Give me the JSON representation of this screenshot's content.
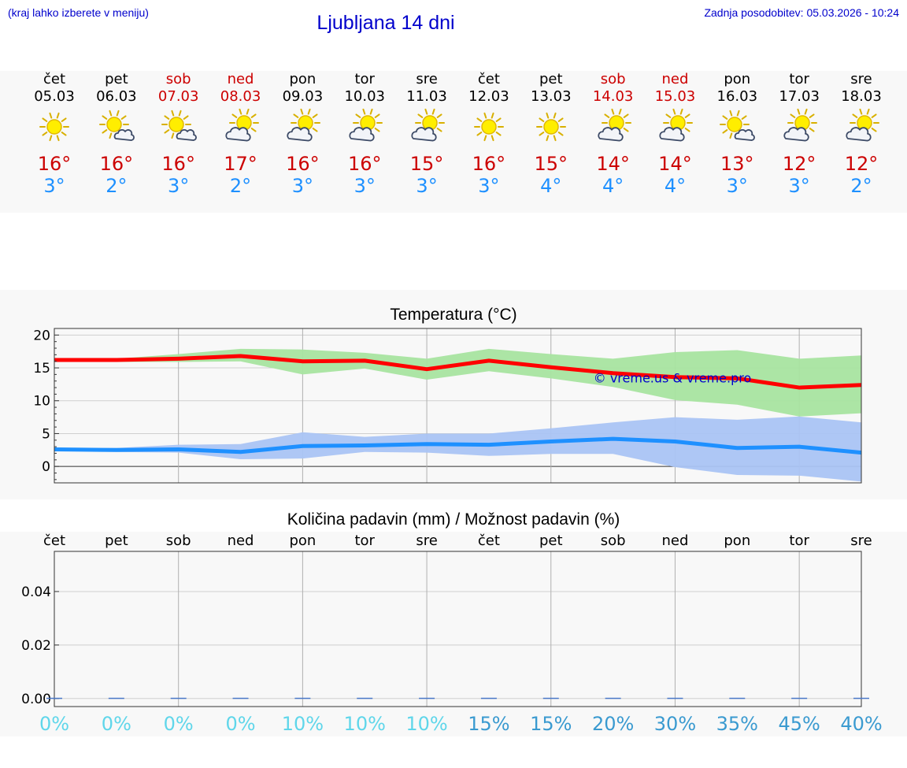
{
  "header": {
    "hint": "(kraj lahko izberete v meniju)",
    "title": "Ljubljana 14 dni",
    "updated": "Zadnja posodobitev: 05.03.2026 - 10:24"
  },
  "days": [
    {
      "name": "čet",
      "date": "05.03",
      "weekend": false,
      "icon": "sun-icon",
      "max": "16°",
      "min": "3°",
      "precip_chance": "0%"
    },
    {
      "name": "pet",
      "date": "06.03",
      "weekend": false,
      "icon": "sun-cloud-icon",
      "max": "16°",
      "min": "2°",
      "precip_chance": "0%"
    },
    {
      "name": "sob",
      "date": "07.03",
      "weekend": true,
      "icon": "sun-cloud-icon",
      "max": "16°",
      "min": "3°",
      "precip_chance": "0%"
    },
    {
      "name": "ned",
      "date": "08.03",
      "weekend": true,
      "icon": "cloud-sun-icon",
      "max": "17°",
      "min": "2°",
      "precip_chance": "0%"
    },
    {
      "name": "pon",
      "date": "09.03",
      "weekend": false,
      "icon": "cloud-sun-icon",
      "max": "16°",
      "min": "3°",
      "precip_chance": "10%"
    },
    {
      "name": "tor",
      "date": "10.03",
      "weekend": false,
      "icon": "cloud-sun-icon",
      "max": "16°",
      "min": "3°",
      "precip_chance": "10%"
    },
    {
      "name": "sre",
      "date": "11.03",
      "weekend": false,
      "icon": "cloud-sun-icon",
      "max": "15°",
      "min": "3°",
      "precip_chance": "10%"
    },
    {
      "name": "čet",
      "date": "12.03",
      "weekend": false,
      "icon": "sun-icon",
      "max": "16°",
      "min": "3°",
      "precip_chance": "15%"
    },
    {
      "name": "pet",
      "date": "13.03",
      "weekend": false,
      "icon": "sun-icon",
      "max": "15°",
      "min": "4°",
      "precip_chance": "15%"
    },
    {
      "name": "sob",
      "date": "14.03",
      "weekend": true,
      "icon": "cloud-sun-icon",
      "max": "14°",
      "min": "4°",
      "precip_chance": "20%"
    },
    {
      "name": "ned",
      "date": "15.03",
      "weekend": true,
      "icon": "cloud-sun-icon",
      "max": "14°",
      "min": "4°",
      "precip_chance": "30%"
    },
    {
      "name": "pon",
      "date": "16.03",
      "weekend": false,
      "icon": "sun-cloud-icon",
      "max": "13°",
      "min": "3°",
      "precip_chance": "35%"
    },
    {
      "name": "tor",
      "date": "17.03",
      "weekend": false,
      "icon": "cloud-sun-icon",
      "max": "12°",
      "min": "3°",
      "precip_chance": "45%"
    },
    {
      "name": "sre",
      "date": "18.03",
      "weekend": false,
      "icon": "cloud-sun-icon",
      "max": "12°",
      "min": "2°",
      "precip_chance": "40%"
    }
  ],
  "colors": {
    "max_temp": "#cc0000",
    "min_temp": "#1e90ff",
    "max_line": "#ff0000",
    "max_band": "#a8e4a0",
    "min_band": "#aac4f4",
    "weekend": "#cc0000",
    "header_text": "#0000cc"
  },
  "chart_data": [
    {
      "type": "line",
      "title": "Temperatura (°C)",
      "watermark": "© vreme.us & vreme.pro",
      "ylim": [
        -2.5,
        21
      ],
      "yticks": [
        0,
        5,
        10,
        15,
        20
      ],
      "grid": true,
      "series": [
        {
          "values": [
            16.2,
            16.2,
            16.4,
            16.8,
            16.0,
            16.1,
            14.8,
            16.1,
            15.1,
            14.2,
            13.6,
            13.4,
            12.0,
            12.4
          ]
        },
        {
          "values": [
            2.6,
            2.5,
            2.6,
            2.2,
            3.1,
            3.2,
            3.4,
            3.3,
            3.8,
            4.2,
            3.8,
            2.8,
            3.0,
            2.1
          ]
        }
      ],
      "bands": [
        {
          "upper": [
            16.3,
            16.4,
            17.1,
            17.9,
            17.8,
            17.3,
            16.4,
            17.9,
            17.1,
            16.4,
            17.4,
            17.7,
            16.4,
            16.9
          ],
          "lower": [
            16.1,
            15.9,
            15.9,
            16.0,
            14.0,
            14.9,
            13.2,
            14.5,
            13.4,
            12.1,
            10.1,
            9.4,
            7.6,
            8.1
          ]
        },
        {
          "upper": [
            2.8,
            2.8,
            3.3,
            3.4,
            5.2,
            4.5,
            5.0,
            5.0,
            5.8,
            6.7,
            7.5,
            7.1,
            7.6,
            6.7
          ],
          "lower": [
            2.4,
            2.2,
            2.1,
            1.1,
            1.2,
            2.2,
            2.1,
            1.6,
            1.9,
            1.9,
            -0.1,
            -1.3,
            -1.4,
            -2.3
          ]
        }
      ]
    },
    {
      "type": "bar",
      "title": "Količina padavin (mm) / Možnost padavin (%)",
      "categories": [
        "čet",
        "pet",
        "sob",
        "ned",
        "pon",
        "tor",
        "sre",
        "čet",
        "pet",
        "sob",
        "ned",
        "pon",
        "tor",
        "sre"
      ],
      "values": [
        0,
        0,
        0,
        0,
        0,
        0,
        0,
        0,
        0,
        0,
        0,
        0,
        0,
        0
      ],
      "ylim": [
        -0.003,
        0.055
      ],
      "yticks": [
        0.0,
        0.02,
        0.04
      ],
      "ytick_labels": [
        "0.00",
        "0.02",
        "0.04"
      ],
      "grid": true
    }
  ]
}
